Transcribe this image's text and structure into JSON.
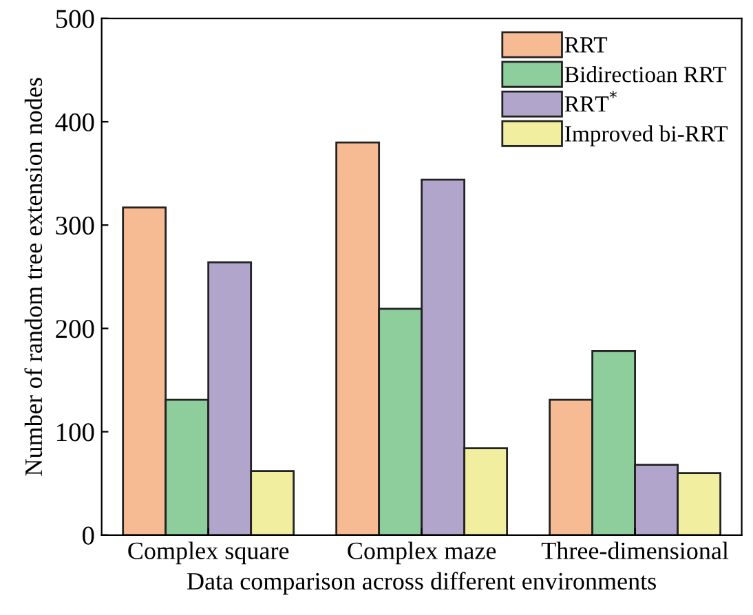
{
  "chart_data": {
    "type": "bar",
    "xlabel": "Data comparison across different environments",
    "ylabel": "Number of random tree extension nodes",
    "categories": [
      "Complex square",
      "Complex maze",
      "Three-dimensional"
    ],
    "series": [
      {
        "name": "RRT",
        "color": "#f6bb93",
        "values": [
          317,
          380,
          131
        ]
      },
      {
        "name": "Bidirectioan RRT",
        "color": "#8ecd9c",
        "values": [
          131,
          219,
          178
        ]
      },
      {
        "name": "RRT$^{*}$",
        "color": "#b2a5cc",
        "values": [
          264,
          344,
          68
        ]
      },
      {
        "name": "Improved bi-RRT",
        "color": "#f1ee9f",
        "values": [
          62,
          84,
          60
        ]
      }
    ],
    "ylim": [
      0,
      500
    ],
    "yticks": [
      0,
      100,
      200,
      300,
      400,
      500
    ],
    "grid": false,
    "legend": "top right"
  }
}
